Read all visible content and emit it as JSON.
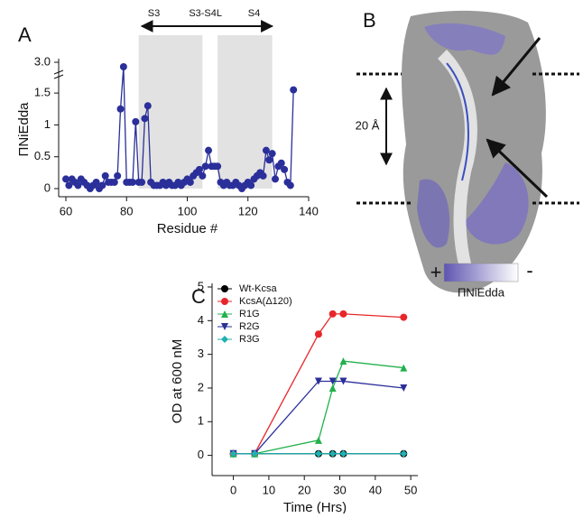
{
  "panel_labels": [
    "A",
    "B",
    "C"
  ],
  "chart_data": [
    {
      "type": "line",
      "y_label": "ΠNiEdda",
      "x_label": "Residue #",
      "color": "#2a2f9a",
      "marker": "circle",
      "x": [
        60,
        61,
        62,
        63,
        64,
        65,
        66,
        67,
        68,
        69,
        70,
        71,
        72,
        73,
        74,
        75,
        76,
        77,
        78,
        79,
        80,
        81,
        82,
        83,
        84,
        85,
        86,
        87,
        88,
        89,
        90,
        91,
        92,
        93,
        94,
        95,
        96,
        97,
        98,
        99,
        100,
        101,
        102,
        103,
        104,
        105,
        106,
        107,
        108,
        109,
        110,
        111,
        112,
        113,
        114,
        115,
        116,
        117,
        118,
        119,
        120,
        121,
        122,
        123,
        124,
        125,
        126,
        127,
        128,
        129,
        130,
        131,
        132,
        133,
        134,
        135
      ],
      "values": [
        0.15,
        0.05,
        0.15,
        0.1,
        0.05,
        0.15,
        0.1,
        0.05,
        0,
        0.05,
        0.1,
        0,
        0.05,
        0.2,
        0.1,
        0.1,
        0.1,
        0.2,
        1.25,
        2.9,
        0.1,
        0.1,
        0.1,
        1.05,
        0.1,
        0.1,
        1.1,
        1.3,
        0.1,
        0.05,
        0.05,
        0.05,
        0.1,
        0.05,
        0.1,
        0.05,
        0.05,
        0.1,
        0.05,
        0.1,
        0.15,
        0.1,
        0.2,
        0.25,
        0.3,
        0.2,
        0.35,
        0.6,
        0.35,
        0.35,
        0.35,
        0.1,
        0.05,
        0.1,
        0.05,
        0.05,
        0.1,
        0.05,
        0,
        0.05,
        0.1,
        0.05,
        0.15,
        0.2,
        0.25,
        0.2,
        0.6,
        0.45,
        0.55,
        0.15,
        0.35,
        0.4,
        0.3,
        0.1,
        0.05,
        1.55
      ],
      "xlim": [
        60,
        140
      ],
      "xticks": [
        60,
        80,
        100,
        120,
        140
      ],
      "ylim": [
        0,
        3.0
      ],
      "y_break": [
        1.7,
        2.8
      ],
      "yticks": [
        0,
        0.5,
        1,
        1.5,
        {
          "value": 3,
          "label": "3.0"
        }
      ],
      "shaded_regions": [
        [
          84,
          105
        ],
        [
          110,
          128
        ]
      ],
      "span_arrow": [
        85,
        128
      ],
      "annotations": [
        {
          "text": "S3",
          "x": 89
        },
        {
          "text": "S3-S4L",
          "x": 106
        },
        {
          "text": "S4",
          "x": 122
        }
      ]
    },
    {
      "type": "line",
      "y_label": "OD at 600 nM",
      "x_label": "Time (Hrs)",
      "x": [
        0,
        6,
        24,
        28,
        31,
        48
      ],
      "series": [
        {
          "name": "Wt-Kcsa",
          "color": "#000000",
          "marker": "circle",
          "values": [
            0.05,
            0.05,
            0.05,
            0.05,
            0.05,
            0.05
          ]
        },
        {
          "name": "KcsA(Δ120)",
          "color": "#e8262a",
          "marker": "circle",
          "values": [
            0.05,
            0.05,
            3.6,
            4.2,
            4.2,
            4.1
          ]
        },
        {
          "name": "R1G",
          "color": "#22b14c",
          "marker": "triangle-up",
          "values": [
            0.05,
            0.05,
            0.45,
            2.0,
            2.8,
            2.6
          ]
        },
        {
          "name": "R2G",
          "color": "#2a2f9a",
          "marker": "triangle-down",
          "values": [
            0.05,
            0.05,
            2.2,
            2.2,
            2.2,
            2.0
          ]
        },
        {
          "name": "R3G",
          "color": "#20b0b0",
          "marker": "diamond",
          "values": [
            0.05,
            0.05,
            0.05,
            0.05,
            0.05,
            0.05
          ]
        }
      ],
      "xlim": [
        -6,
        52
      ],
      "xticks": [
        0,
        10,
        20,
        30,
        40,
        50
      ],
      "ylim": [
        -0.6,
        5
      ],
      "yticks": [
        0,
        1,
        2,
        3,
        4,
        5
      ],
      "legend": "upper-left"
    }
  ],
  "panel_b": {
    "distance": "20 Å",
    "scale_plus": "+",
    "scale_minus": "-",
    "scale_label": "ΠNiEdda"
  }
}
